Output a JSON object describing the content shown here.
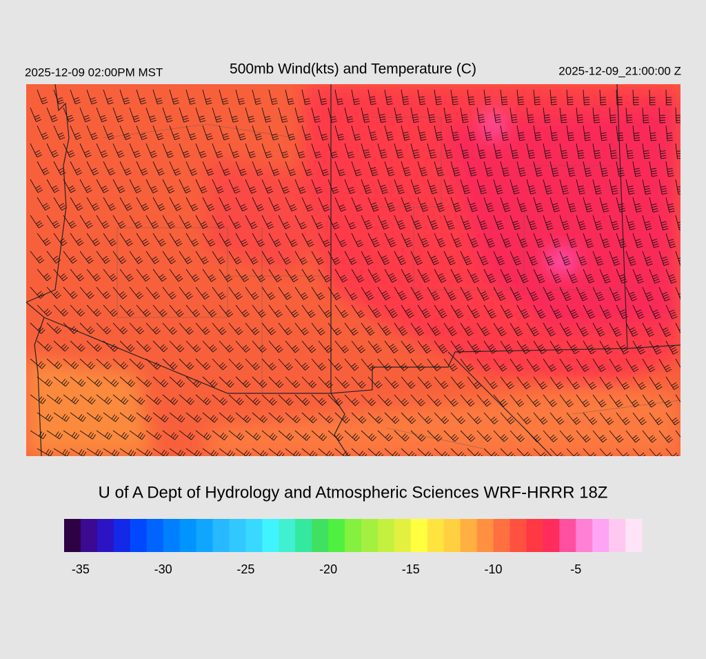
{
  "header": {
    "valid_local": "2025-12-09 02:00PM MST",
    "title": "500mb Wind(kts) and Temperature (C)",
    "valid_utc": "2025-12-09_21:00:00 Z"
  },
  "credit": "U of A Dept of Hydrology and Atmospheric Sciences WRF-HRRR 18Z",
  "colorbar": {
    "lim": [
      -36,
      -1
    ],
    "ticks": [
      -35,
      -30,
      -25,
      -20,
      -15,
      -10,
      -5
    ],
    "colors": [
      "#2e0044",
      "#3a0a90",
      "#2c14c4",
      "#1428e8",
      "#0048ff",
      "#0064ff",
      "#0080ff",
      "#0094ff",
      "#10a6ff",
      "#28b8ff",
      "#30c8ff",
      "#38d8ff",
      "#40f4ff",
      "#40f0d0",
      "#34e8a0",
      "#40e060",
      "#50f040",
      "#84f040",
      "#a4f040",
      "#c4f040",
      "#e4f040",
      "#ffff40",
      "#ffe440",
      "#ffd040",
      "#ffb040",
      "#ff9040",
      "#ff7040",
      "#ff5040",
      "#ff3844",
      "#ff2c5c",
      "#ff50a0",
      "#ff80d4",
      "#ffa4f4",
      "#ffc8f0",
      "#ffe4f8"
    ]
  }
}
